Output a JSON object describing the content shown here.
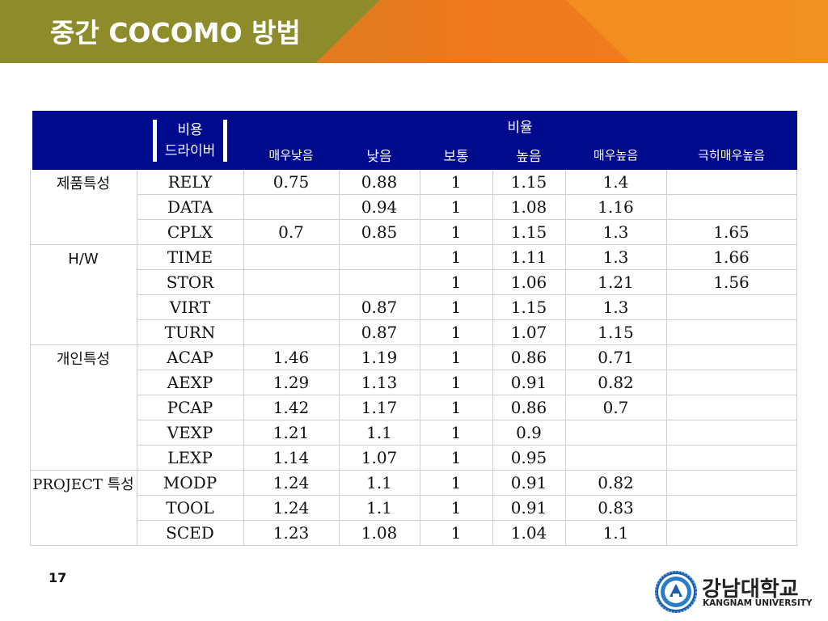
{
  "slide": {
    "title": "중간 COCOMO 방법",
    "page_number": "17",
    "colors": {
      "title_left": "#8e8c2a",
      "title_right": "#f39b22",
      "title_orange": "#ee6b1f",
      "header_bg": "#000a8c"
    }
  },
  "table": {
    "header": {
      "driver": "비용\n드라이버",
      "ratio": "비율",
      "levels": [
        "매우낮음",
        "낮음",
        "보통",
        "높음",
        "매우높음",
        "극히매우높음"
      ]
    },
    "groups": [
      {
        "label": "제품특성",
        "rows": [
          {
            "driver": "RELY",
            "values": [
              "0.75",
              "0.88",
              "1",
              "1.15",
              "1.4",
              ""
            ]
          },
          {
            "driver": "DATA",
            "values": [
              "",
              "0.94",
              "1",
              "1.08",
              "1.16",
              ""
            ]
          },
          {
            "driver": "CPLX",
            "values": [
              "0.7",
              "0.85",
              "1",
              "1.15",
              "1.3",
              "1.65"
            ]
          }
        ]
      },
      {
        "label": "H/W",
        "rows": [
          {
            "driver": "TIME",
            "values": [
              "",
              "",
              "1",
              "1.11",
              "1.3",
              "1.66"
            ]
          },
          {
            "driver": "STOR",
            "values": [
              "",
              "",
              "1",
              "1.06",
              "1.21",
              "1.56"
            ]
          },
          {
            "driver": "VIRT",
            "values": [
              "",
              "0.87",
              "1",
              "1.15",
              "1.3",
              ""
            ]
          },
          {
            "driver": "TURN",
            "values": [
              "",
              "0.87",
              "1",
              "1.07",
              "1.15",
              ""
            ]
          }
        ]
      },
      {
        "label": "개인특성",
        "rows": [
          {
            "driver": "ACAP",
            "values": [
              "1.46",
              "1.19",
              "1",
              "0.86",
              "0.71",
              ""
            ]
          },
          {
            "driver": "AEXP",
            "values": [
              "1.29",
              "1.13",
              "1",
              "0.91",
              "0.82",
              ""
            ]
          },
          {
            "driver": "PCAP",
            "values": [
              "1.42",
              "1.17",
              "1",
              "0.86",
              "0.7",
              ""
            ]
          },
          {
            "driver": "VEXP",
            "values": [
              "1.21",
              "1.1",
              "1",
              "0.9",
              "",
              ""
            ]
          },
          {
            "driver": "LEXP",
            "values": [
              "1.14",
              "1.07",
              "1",
              "0.95",
              "",
              ""
            ]
          }
        ]
      },
      {
        "label": "PROJECT\n특성",
        "rows": [
          {
            "driver": "MODP",
            "values": [
              "1.24",
              "1.1",
              "1",
              "0.91",
              "0.82",
              ""
            ]
          },
          {
            "driver": "TOOL",
            "values": [
              "1.24",
              "1.1",
              "1",
              "0.91",
              "0.83",
              ""
            ]
          },
          {
            "driver": "SCED",
            "values": [
              "1.23",
              "1.08",
              "1",
              "1.04",
              "1.1",
              ""
            ]
          }
        ]
      }
    ]
  },
  "logo": {
    "name": "강남대학교",
    "subtitle": "KANGNAM UNIVERSITY",
    "emblem_icon": "university-emblem-icon"
  }
}
